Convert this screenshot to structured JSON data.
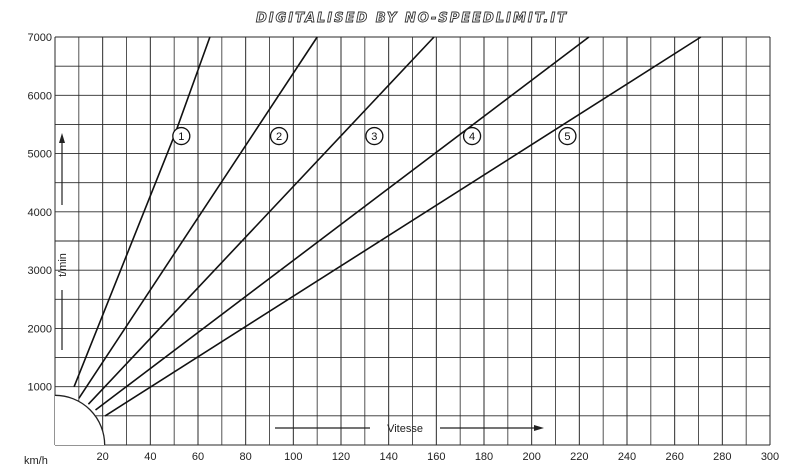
{
  "banner": "DIGITALISED BY NO-SPEEDLIMIT.IT",
  "chart_data": {
    "type": "line",
    "title": "",
    "xlabel": "Vitesse",
    "ylabel": "t/min",
    "x_unit_label": "km/h",
    "xlim": [
      0,
      300
    ],
    "ylim": [
      0,
      7000
    ],
    "x_ticks": [
      20,
      40,
      60,
      80,
      100,
      120,
      140,
      160,
      180,
      200,
      220,
      240,
      260,
      280,
      300
    ],
    "y_ticks": [
      1000,
      2000,
      3000,
      4000,
      5000,
      6000,
      7000
    ],
    "grid": true,
    "series": [
      {
        "name": "1",
        "x": [
          8,
          50,
          65
        ],
        "y": [
          1000,
          5300,
          7000
        ]
      },
      {
        "name": "2",
        "x": [
          10,
          110
        ],
        "y": [
          800,
          7000
        ]
      },
      {
        "name": "3",
        "x": [
          14,
          159
        ],
        "y": [
          700,
          7000
        ]
      },
      {
        "name": "4",
        "x": [
          17,
          224
        ],
        "y": [
          600,
          7000
        ]
      },
      {
        "name": "5",
        "x": [
          21,
          271
        ],
        "y": [
          500,
          7000
        ]
      }
    ],
    "markers": [
      {
        "label": "1",
        "x": 53,
        "y": 5300
      },
      {
        "label": "2",
        "x": 94,
        "y": 5300
      },
      {
        "label": "3",
        "x": 134,
        "y": 5300
      },
      {
        "label": "4",
        "x": 175,
        "y": 5300
      },
      {
        "label": "5",
        "x": 215,
        "y": 5300
      }
    ]
  }
}
